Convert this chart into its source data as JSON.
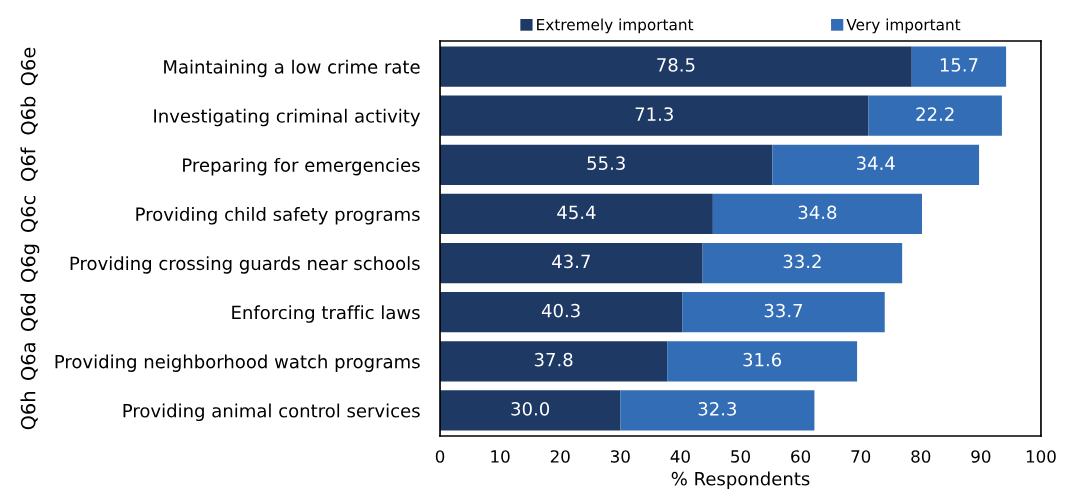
{
  "chart_data": {
    "type": "bar",
    "orientation": "horizontal",
    "stacked": true,
    "categories": [
      "Maintaining a low crime rate",
      "Investigating criminal activity",
      "Preparing for emergencies",
      "Providing child safety programs",
      "Providing crossing guards near schools",
      "Enforcing traffic laws",
      "Providing neighborhood watch programs",
      "Providing animal control services"
    ],
    "series": [
      {
        "name": "Extremely important",
        "color": "#1e3a64",
        "values": [
          78.5,
          71.3,
          55.3,
          45.4,
          43.7,
          40.3,
          37.8,
          30.0
        ],
        "value_labels": [
          "78.5",
          "71.3",
          "55.3",
          "45.4",
          "43.7",
          "40.3",
          "37.8",
          "30.0"
        ]
      },
      {
        "name": "Very important",
        "color": "#336db5",
        "values": [
          15.7,
          22.2,
          34.4,
          34.8,
          33.2,
          33.7,
          31.6,
          32.3
        ],
        "value_labels": [
          "15.7",
          "22.2",
          "34.4",
          "34.8",
          "33.2",
          "33.7",
          "31.6",
          "32.3"
        ]
      }
    ],
    "xlabel": "% Respondents",
    "xlim": [
      0,
      100
    ],
    "xticks": [
      0,
      10,
      20,
      30,
      40,
      50,
      60,
      70,
      80,
      90,
      100
    ],
    "legend": "top",
    "annotations": [
      "Q6e",
      "Q6b",
      "Q6f",
      "Q6c",
      "Q6g",
      "Q6d",
      "Q6a",
      "Q6h"
    ]
  }
}
